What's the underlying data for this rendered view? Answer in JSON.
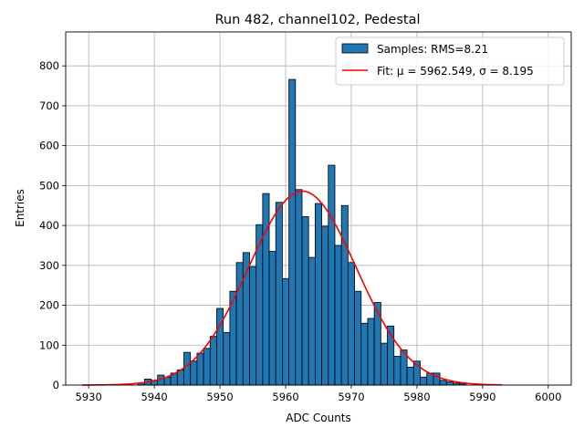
{
  "chart_data": {
    "type": "bar",
    "title": "Run 482, channel102, Pedestal",
    "xlabel": "ADC Counts",
    "ylabel": "Entries",
    "xlim": [
      5926.5,
      6003.5
    ],
    "ylim": [
      0,
      885
    ],
    "xticks": [
      5930,
      5940,
      5950,
      5960,
      5970,
      5980,
      5990,
      6000
    ],
    "yticks": [
      0,
      100,
      200,
      300,
      400,
      500,
      600,
      700,
      800
    ],
    "grid": true,
    "bar_color": "#1f77b4",
    "fit_color": "#ff0000",
    "bin_width": 1,
    "bins": [
      {
        "x": 5938,
        "y": 5
      },
      {
        "x": 5939,
        "y": 15
      },
      {
        "x": 5940,
        "y": 12
      },
      {
        "x": 5941,
        "y": 25
      },
      {
        "x": 5942,
        "y": 20
      },
      {
        "x": 5943,
        "y": 30
      },
      {
        "x": 5944,
        "y": 38
      },
      {
        "x": 5945,
        "y": 82
      },
      {
        "x": 5946,
        "y": 60
      },
      {
        "x": 5947,
        "y": 80
      },
      {
        "x": 5948,
        "y": 92
      },
      {
        "x": 5949,
        "y": 122
      },
      {
        "x": 5950,
        "y": 192
      },
      {
        "x": 5951,
        "y": 132
      },
      {
        "x": 5952,
        "y": 235
      },
      {
        "x": 5953,
        "y": 307
      },
      {
        "x": 5954,
        "y": 332
      },
      {
        "x": 5955,
        "y": 297
      },
      {
        "x": 5956,
        "y": 402
      },
      {
        "x": 5957,
        "y": 480
      },
      {
        "x": 5958,
        "y": 335
      },
      {
        "x": 5959,
        "y": 458
      },
      {
        "x": 5960,
        "y": 267
      },
      {
        "x": 5961,
        "y": 766
      },
      {
        "x": 5962,
        "y": 490
      },
      {
        "x": 5963,
        "y": 422
      },
      {
        "x": 5964,
        "y": 320
      },
      {
        "x": 5965,
        "y": 455
      },
      {
        "x": 5966,
        "y": 398
      },
      {
        "x": 5967,
        "y": 551
      },
      {
        "x": 5968,
        "y": 350
      },
      {
        "x": 5969,
        "y": 450
      },
      {
        "x": 5970,
        "y": 307
      },
      {
        "x": 5971,
        "y": 235
      },
      {
        "x": 5972,
        "y": 155
      },
      {
        "x": 5973,
        "y": 167
      },
      {
        "x": 5974,
        "y": 207
      },
      {
        "x": 5975,
        "y": 105
      },
      {
        "x": 5976,
        "y": 148
      },
      {
        "x": 5977,
        "y": 72
      },
      {
        "x": 5978,
        "y": 88
      },
      {
        "x": 5979,
        "y": 45
      },
      {
        "x": 5980,
        "y": 60
      },
      {
        "x": 5981,
        "y": 20
      },
      {
        "x": 5982,
        "y": 30
      },
      {
        "x": 5983,
        "y": 30
      },
      {
        "x": 5984,
        "y": 12
      },
      {
        "x": 5985,
        "y": 8
      },
      {
        "x": 5986,
        "y": 5
      },
      {
        "x": 5987,
        "y": 3
      }
    ],
    "series": [
      {
        "name": "Samples: RMS=8.21",
        "kind": "histogram"
      },
      {
        "name": "Fit: μ = 5962.549, σ = 8.195",
        "kind": "gaussian_fit",
        "mu": 5962.549,
        "sigma": 8.195,
        "amplitude": 486,
        "range": [
          5929,
          5993
        ]
      }
    ],
    "legend": {
      "position": "top-right"
    }
  }
}
